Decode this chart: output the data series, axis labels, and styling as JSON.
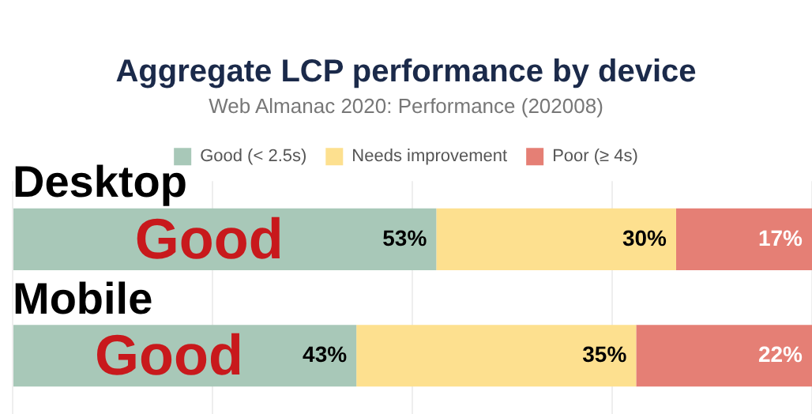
{
  "chart_data": {
    "type": "bar",
    "orientation": "horizontal",
    "stacked": true,
    "title": "Aggregate LCP performance by device",
    "subtitle": "Web Almanac 2020: Performance (202008)",
    "categories": [
      "Desktop",
      "Mobile"
    ],
    "series": [
      {
        "name": "Good (< 2.5s)",
        "color": "#a8c8b8",
        "values": [
          53,
          43
        ],
        "value_labels": [
          "53%",
          "43%"
        ]
      },
      {
        "name": "Needs improvement",
        "color": "#fde08f",
        "values": [
          30,
          35
        ],
        "value_labels": [
          "30%",
          "35%"
        ]
      },
      {
        "name": "Poor (≥ 4s)",
        "color": "#e57f75",
        "values": [
          17,
          22
        ],
        "value_labels": [
          "17%",
          "22%"
        ]
      }
    ],
    "xlim": [
      0,
      100
    ],
    "xticks": [
      0,
      25,
      50,
      75,
      100
    ],
    "grid": "x",
    "legend": "top",
    "tick_labels": "y",
    "annotations": [
      "Good",
      "Good"
    ]
  }
}
